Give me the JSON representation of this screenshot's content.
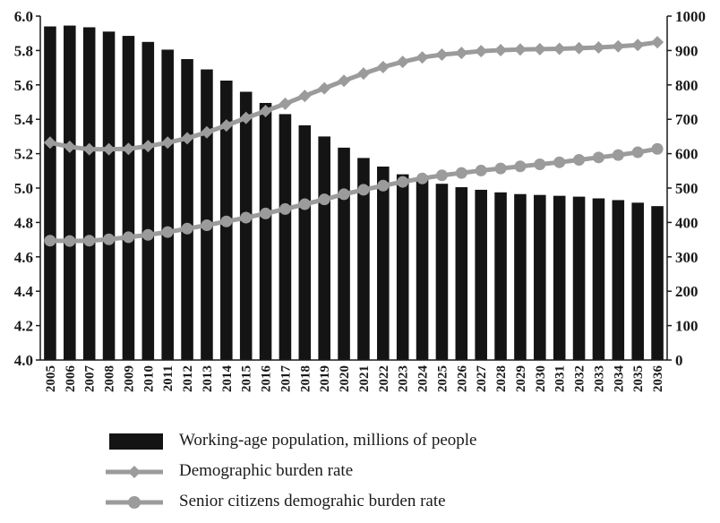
{
  "chart_data": {
    "type": "bar",
    "categories": [
      "2005",
      "2006",
      "2007",
      "2008",
      "2009",
      "2010",
      "2011",
      "2012",
      "2013",
      "2014",
      "2015",
      "2016",
      "2017",
      "2018",
      "2019",
      "2020",
      "2021",
      "2022",
      "2023",
      "2024",
      "2025",
      "2026",
      "2027",
      "2028",
      "2029",
      "2030",
      "2031",
      "2032",
      "2033",
      "2034",
      "2035",
      "2036"
    ],
    "series": [
      {
        "name": "Working-age population, millions of people",
        "type": "bar",
        "axis": "left",
        "color": "#141414",
        "values": [
          5.94,
          5.945,
          5.935,
          5.91,
          5.885,
          5.85,
          5.805,
          5.75,
          5.69,
          5.625,
          5.56,
          5.495,
          5.43,
          5.365,
          5.3,
          5.235,
          5.175,
          5.125,
          5.08,
          5.05,
          5.025,
          5.005,
          4.99,
          4.975,
          4.965,
          4.96,
          4.955,
          4.95,
          4.94,
          4.93,
          4.915,
          4.895
        ]
      },
      {
        "name": "Demographic burden rate",
        "type": "line",
        "marker": "diamond",
        "axis": "right",
        "color": "#9b9b9b",
        "values": [
          632,
          620,
          613,
          613,
          614,
          622,
          632,
          645,
          662,
          682,
          704,
          724,
          745,
          768,
          790,
          812,
          833,
          852,
          867,
          880,
          888,
          893,
          898,
          901,
          903,
          904,
          905,
          907,
          909,
          912,
          916,
          924
        ]
      },
      {
        "name": "Senior citizens demograhic burden rate",
        "type": "line",
        "marker": "circle",
        "axis": "right",
        "color": "#9b9b9b",
        "values": [
          347,
          346,
          347,
          351,
          357,
          364,
          372,
          382,
          392,
          403,
          414,
          426,
          439,
          453,
          467,
          482,
          495,
          507,
          518,
          528,
          537,
          544,
          551,
          557,
          563,
          569,
          575,
          582,
          589,
          596,
          604,
          614
        ]
      }
    ],
    "yAxisLeft": {
      "range": [
        4.0,
        6.0
      ],
      "ticks": [
        "4.0",
        "4.2",
        "4.4",
        "4.6",
        "4.8",
        "5.0",
        "5.2",
        "5.4",
        "5.6",
        "5.8",
        "6.0"
      ]
    },
    "yAxisRight": {
      "range": [
        0,
        1000
      ],
      "ticks": [
        "0",
        "100",
        "200",
        "300",
        "400",
        "500",
        "600",
        "700",
        "800",
        "900",
        "1000"
      ]
    },
    "grid": false,
    "legend": "bottom"
  }
}
